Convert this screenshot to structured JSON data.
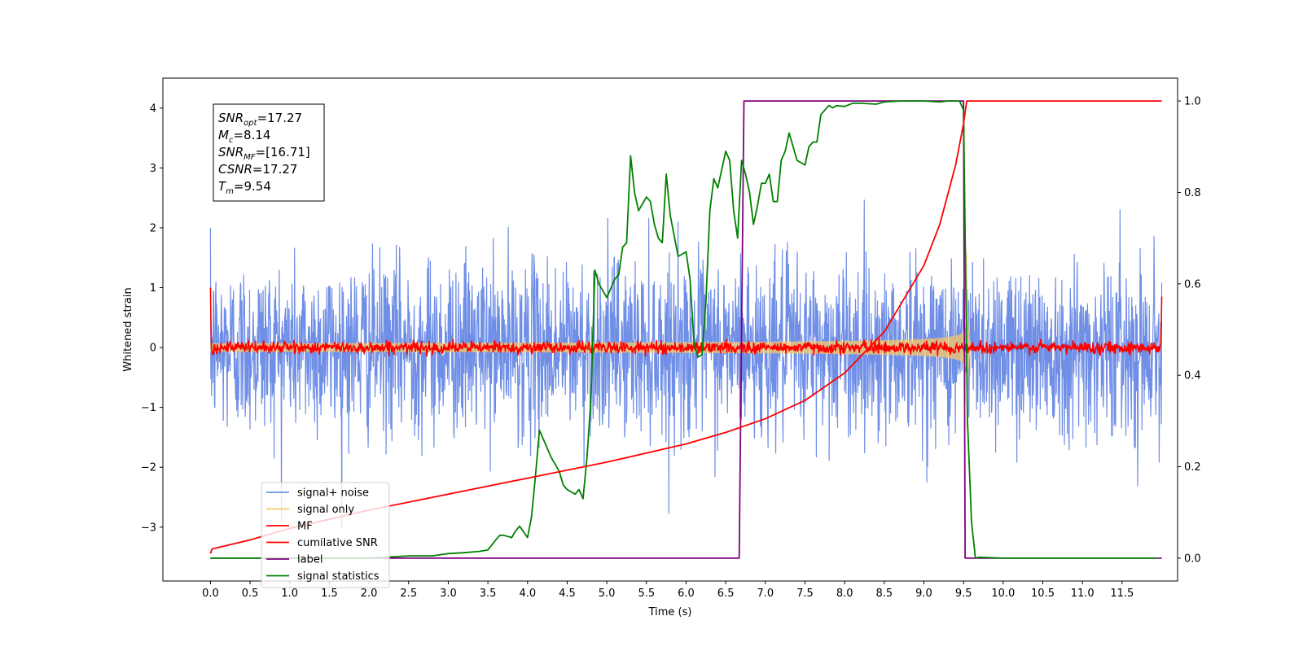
{
  "chart_data": {
    "type": "line",
    "xlabel": "Time (s)",
    "ylabel_left": "Whitened strain",
    "ylabel_right": "",
    "xlim": [
      -0.6,
      12.2
    ],
    "ylim_left": [
      -3.9,
      4.5
    ],
    "ylim_right": [
      -0.05,
      1.05
    ],
    "grid": false,
    "legend_placement": "lower-left",
    "x_ticks": [
      "0.0",
      "0.5",
      "1.0",
      "1.5",
      "2.0",
      "2.5",
      "3.0",
      "3.5",
      "4.0",
      "4.5",
      "5.0",
      "5.5",
      "6.0",
      "6.5",
      "7.0",
      "7.5",
      "8.0",
      "8.5",
      "9.0",
      "9.5",
      "10.0",
      "10.5",
      "11.0",
      "11.5"
    ],
    "y_ticks_left": [
      "−3",
      "−2",
      "−1",
      "0",
      "1",
      "2",
      "3",
      "4"
    ],
    "y_ticks_right": [
      "0.0",
      "0.2",
      "0.4",
      "0.6",
      "0.8",
      "1.0"
    ],
    "info_box": {
      "lines": [
        {
          "sym": "SNR",
          "sub": "opt",
          "val": "=17.27"
        },
        {
          "sym": "M",
          "sub": "c",
          "val": "=8.14"
        },
        {
          "sym": "SNR",
          "sub": "MF",
          "val": "=[16.71]"
        },
        {
          "sym": "CSNR",
          "sub": "",
          "val": "=17.27"
        },
        {
          "sym": "T",
          "sub": "m",
          "val": "=9.54"
        }
      ]
    },
    "series": [
      {
        "name": "signal+ noise",
        "axis": "left",
        "color": "#6f8ee6",
        "kind": "noise",
        "x_range": [
          0.0,
          12.0
        ],
        "noise_std": 0.72,
        "peak_range": [
          -3.5,
          4.1
        ]
      },
      {
        "name": "signal only",
        "axis": "left",
        "color": "#f5c96a",
        "kind": "chirp",
        "x_range": [
          0.0,
          9.54
        ],
        "amplitude_start": 0.07,
        "amplitude_end": 1.6,
        "ringdown_end": 9.64
      },
      {
        "name": "MF",
        "axis": "left",
        "color": "#ff0000",
        "kind": "mf",
        "x_range": [
          0.0,
          12.0
        ],
        "noise_std": 0.05,
        "edge_values": [
          1.0,
          0.85
        ]
      },
      {
        "name": "cumilative SNR",
        "axis": "right",
        "color": "#ff0000",
        "kind": "line",
        "x": [
          0.0,
          0.02,
          0.5,
          1.0,
          2.0,
          3.0,
          4.0,
          5.0,
          6.0,
          6.5,
          7.0,
          7.5,
          8.0,
          8.5,
          9.0,
          9.2,
          9.4,
          9.5,
          9.54,
          9.6,
          12.0
        ],
        "y": [
          0.01,
          0.02,
          0.04,
          0.065,
          0.105,
          0.14,
          0.175,
          0.21,
          0.25,
          0.275,
          0.305,
          0.345,
          0.405,
          0.495,
          0.64,
          0.73,
          0.86,
          0.95,
          1.0,
          1.0,
          1.0
        ]
      },
      {
        "name": "label",
        "axis": "right",
        "color": "#800080",
        "kind": "line",
        "x": [
          0.0,
          6.67,
          6.73,
          9.5,
          9.52,
          9.56,
          12.0
        ],
        "y": [
          0.0,
          0.0,
          1.0,
          1.0,
          0.0,
          0.0,
          0.0
        ]
      },
      {
        "name": "signal statistics",
        "axis": "right",
        "color": "#008000",
        "kind": "line",
        "x": [
          0.0,
          0.5,
          1.0,
          1.5,
          2.0,
          2.5,
          2.8,
          3.0,
          3.2,
          3.4,
          3.5,
          3.6,
          3.65,
          3.7,
          3.8,
          3.85,
          3.9,
          4.0,
          4.05,
          4.1,
          4.15,
          4.2,
          4.3,
          4.4,
          4.45,
          4.5,
          4.6,
          4.65,
          4.7,
          4.75,
          4.8,
          4.85,
          4.9,
          5.0,
          5.1,
          5.15,
          5.2,
          5.25,
          5.3,
          5.35,
          5.4,
          5.5,
          5.55,
          5.6,
          5.65,
          5.7,
          5.75,
          5.8,
          5.9,
          6.0,
          6.05,
          6.1,
          6.15,
          6.2,
          6.25,
          6.3,
          6.35,
          6.4,
          6.45,
          6.5,
          6.55,
          6.6,
          6.65,
          6.7,
          6.75,
          6.8,
          6.85,
          6.9,
          6.95,
          7.0,
          7.05,
          7.1,
          7.15,
          7.2,
          7.25,
          7.3,
          7.35,
          7.4,
          7.5,
          7.55,
          7.6,
          7.65,
          7.7,
          7.75,
          7.8,
          7.85,
          7.9,
          8.0,
          8.1,
          8.2,
          8.4,
          8.5,
          8.7,
          9.0,
          9.2,
          9.3,
          9.4,
          9.45,
          9.5,
          9.55,
          9.6,
          9.65,
          9.7,
          10.0,
          11.0,
          11.95
        ],
        "y": [
          0.0,
          0.0,
          0.0,
          0.0,
          0.0,
          0.005,
          0.005,
          0.01,
          0.012,
          0.015,
          0.018,
          0.04,
          0.05,
          0.05,
          0.045,
          0.06,
          0.07,
          0.045,
          0.09,
          0.18,
          0.28,
          0.26,
          0.22,
          0.19,
          0.16,
          0.15,
          0.14,
          0.15,
          0.13,
          0.22,
          0.35,
          0.63,
          0.6,
          0.57,
          0.61,
          0.62,
          0.68,
          0.69,
          0.88,
          0.8,
          0.76,
          0.79,
          0.78,
          0.73,
          0.7,
          0.69,
          0.84,
          0.75,
          0.66,
          0.67,
          0.61,
          0.47,
          0.44,
          0.445,
          0.56,
          0.76,
          0.83,
          0.81,
          0.85,
          0.89,
          0.87,
          0.76,
          0.7,
          0.87,
          0.84,
          0.8,
          0.73,
          0.77,
          0.82,
          0.82,
          0.84,
          0.78,
          0.78,
          0.87,
          0.89,
          0.93,
          0.9,
          0.87,
          0.86,
          0.9,
          0.91,
          0.91,
          0.97,
          0.98,
          0.99,
          0.985,
          0.99,
          0.988,
          0.995,
          0.995,
          0.993,
          0.998,
          1.0,
          1.0,
          0.998,
          1.0,
          1.0,
          1.0,
          0.98,
          0.3,
          0.08,
          0.0,
          0.002,
          0.0,
          0.0,
          0.0
        ]
      }
    ]
  }
}
